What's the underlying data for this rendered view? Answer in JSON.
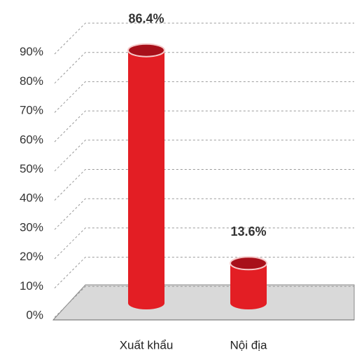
{
  "chart_data": {
    "type": "bar",
    "categories": [
      "Xuất khẩu",
      "Nội địa"
    ],
    "values": [
      86.4,
      13.6
    ],
    "value_labels": [
      "86.4%",
      "13.6%"
    ],
    "color": "#e31e24",
    "ylim": [
      0,
      100
    ],
    "yticks": [
      {
        "value": 0,
        "label": "0%"
      },
      {
        "value": 10,
        "label": "10%"
      },
      {
        "value": 20,
        "label": "20%"
      },
      {
        "value": 30,
        "label": "30%"
      },
      {
        "value": 40,
        "label": "40%"
      },
      {
        "value": 50,
        "label": "50%"
      },
      {
        "value": 60,
        "label": "60%"
      },
      {
        "value": 70,
        "label": "70%"
      },
      {
        "value": 80,
        "label": "80%"
      },
      {
        "value": 90,
        "label": "90%"
      }
    ],
    "grid": true
  }
}
